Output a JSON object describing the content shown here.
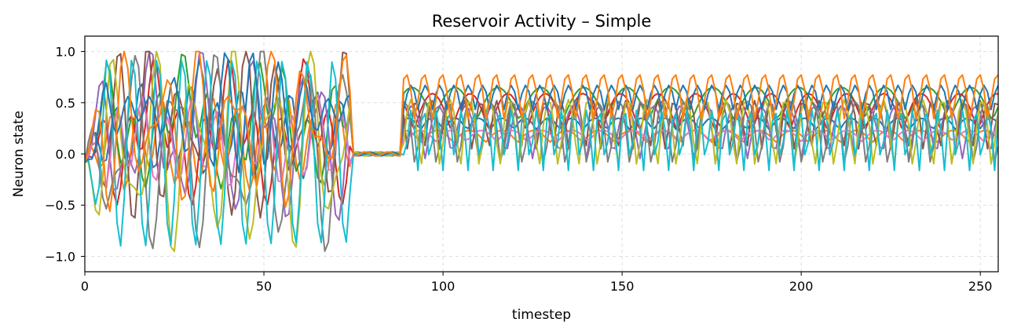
{
  "chart_data": {
    "type": "line",
    "title": "Reservoir Activity – Simple",
    "xlabel": "timestep",
    "ylabel": "Neuron state",
    "xlim": [
      0,
      255
    ],
    "ylim": [
      -1.15,
      1.15
    ],
    "xticks": [
      0,
      50,
      100,
      150,
      200,
      250
    ],
    "xtick_labels": [
      "0",
      "50",
      "100",
      "150",
      "200",
      "250"
    ],
    "yticks": [
      -1.0,
      -0.5,
      0.0,
      0.5,
      1.0
    ],
    "ytick_labels": [
      "−1.0",
      "−0.5",
      "0.0",
      "0.5",
      "1.0"
    ],
    "grid": true,
    "num_steps": 256,
    "active_until": 74,
    "flat_until": 88,
    "series": [
      {
        "color": "#1f77b4",
        "amp": 0.12,
        "offset": 0.23,
        "period": 13,
        "phase": 0.4
      },
      {
        "color": "#ff7f0e",
        "amp": 0.12,
        "offset": 0.11,
        "period": 18,
        "phase": 1.1
      },
      {
        "color": "#2ca02c",
        "amp": 0.33,
        "offset": 0.32,
        "period": 24,
        "phase": 0.7
      },
      {
        "color": "#d62728",
        "amp": 0.37,
        "offset": 0.22,
        "period": 21,
        "phase": 2.0
      },
      {
        "color": "#9467bd",
        "amp": 0.52,
        "offset": 0.2,
        "period": 15,
        "phase": 0.2
      },
      {
        "color": "#8c564b",
        "amp": 0.55,
        "offset": 0.22,
        "period": 9,
        "phase": 1.6
      },
      {
        "color": "#e377c2",
        "amp": 0.11,
        "offset": 0.12,
        "period": 17,
        "phase": 2.6
      },
      {
        "color": "#7f7f7f",
        "amp": 0.7,
        "offset": 0.07,
        "period": 12,
        "phase": 0.9
      },
      {
        "color": "#bcbd22",
        "amp": 0.73,
        "offset": 0.05,
        "period": 11,
        "phase": 3.0
      },
      {
        "color": "#17becf",
        "amp": 0.66,
        "offset": 0.02,
        "period": 7,
        "phase": 1.9
      },
      {
        "color": "#1f77b4",
        "amp": 0.25,
        "offset": 0.42,
        "period": 8,
        "phase": 2.3
      },
      {
        "color": "#ff7f0e",
        "amp": 0.5,
        "offset": 0.28,
        "period": 10,
        "phase": 0.5
      }
    ]
  }
}
